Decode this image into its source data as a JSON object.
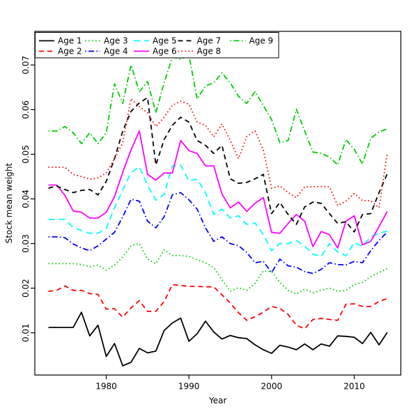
{
  "chart_data": {
    "type": "line",
    "title": "",
    "xlabel": "Year",
    "ylabel": "Stock mean weight",
    "grid": false,
    "legend_position": "top-left",
    "background": "#ffffff",
    "axis_color": "#000000",
    "xlim": [
      1971.36,
      2015.64
    ],
    "ylim": [
      0.00054,
      0.07754
    ],
    "x_ticks": [
      1980,
      1990,
      2000,
      2010
    ],
    "x_tick_labels": [
      "1980",
      "1990",
      "2000",
      "2010"
    ],
    "y_ticks": [
      0.01,
      0.02,
      0.03,
      0.04,
      0.05,
      0.06,
      0.07
    ],
    "y_tick_labels": [
      "0.01",
      "0.02",
      "0.03",
      "0.04",
      "0.05",
      "0.06",
      "0.07"
    ],
    "x": [
      1973,
      1974,
      1975,
      1976,
      1977,
      1978,
      1979,
      1980,
      1981,
      1982,
      1983,
      1984,
      1985,
      1986,
      1987,
      1988,
      1989,
      1990,
      1991,
      1992,
      1993,
      1994,
      1995,
      1996,
      1997,
      1998,
      1999,
      2000,
      2001,
      2002,
      2003,
      2004,
      2005,
      2006,
      2007,
      2008,
      2009,
      2010,
      2011,
      2012,
      2013,
      2014
    ],
    "series": [
      {
        "name": "Age 1",
        "color": "#000000",
        "linetype": "solid",
        "values": [
          0.0112,
          0.0112,
          0.0112,
          0.0112,
          0.0146,
          0.0093,
          0.0117,
          0.0047,
          0.0076,
          0.0026,
          0.0034,
          0.0065,
          0.0055,
          0.0059,
          0.0105,
          0.0122,
          0.0133,
          0.0081,
          0.0098,
          0.0126,
          0.0102,
          0.0086,
          0.0094,
          0.0089,
          0.0087,
          0.0073,
          0.0062,
          0.0054,
          0.0072,
          0.0068,
          0.0062,
          0.0075,
          0.0062,
          0.0075,
          0.007,
          0.0093,
          0.0092,
          0.009,
          0.0076,
          0.0101,
          0.0073,
          0.0101
        ]
      },
      {
        "name": "Age 2",
        "color": "#ff0000",
        "linetype": "dashed",
        "values": [
          0.0193,
          0.0195,
          0.0205,
          0.0195,
          0.0195,
          0.0188,
          0.0186,
          0.0153,
          0.0154,
          0.0135,
          0.0156,
          0.0172,
          0.0148,
          0.0148,
          0.017,
          0.0208,
          0.0206,
          0.0204,
          0.0204,
          0.0203,
          0.0203,
          0.0185,
          0.0167,
          0.0145,
          0.0128,
          0.0136,
          0.0146,
          0.0159,
          0.0155,
          0.0141,
          0.0117,
          0.0109,
          0.013,
          0.0132,
          0.013,
          0.0128,
          0.0164,
          0.0165,
          0.0159,
          0.0159,
          0.017,
          0.0177
        ]
      },
      {
        "name": "Age 3",
        "color": "#00cc00",
        "linetype": "dotted",
        "values": [
          0.0255,
          0.0255,
          0.0255,
          0.0255,
          0.0253,
          0.0248,
          0.0252,
          0.024,
          0.0252,
          0.027,
          0.0295,
          0.03,
          0.0265,
          0.0255,
          0.0286,
          0.0273,
          0.0273,
          0.0271,
          0.0264,
          0.0257,
          0.0246,
          0.0219,
          0.0193,
          0.0201,
          0.0195,
          0.0211,
          0.0239,
          0.0237,
          0.0213,
          0.0195,
          0.0187,
          0.0198,
          0.019,
          0.0195,
          0.02,
          0.0193,
          0.0195,
          0.0208,
          0.0213,
          0.0226,
          0.0235,
          0.0244
        ]
      },
      {
        "name": "Age 4",
        "color": "#0000ff",
        "linetype": "dotdash",
        "values": [
          0.0315,
          0.0315,
          0.0313,
          0.0299,
          0.029,
          0.0284,
          0.0295,
          0.031,
          0.0325,
          0.036,
          0.0399,
          0.0395,
          0.035,
          0.0335,
          0.036,
          0.0409,
          0.0414,
          0.0398,
          0.0377,
          0.0335,
          0.0305,
          0.0315,
          0.03,
          0.0295,
          0.028,
          0.0257,
          0.026,
          0.0235,
          0.0265,
          0.025,
          0.0247,
          0.0237,
          0.0233,
          0.0242,
          0.0257,
          0.0253,
          0.0252,
          0.026,
          0.0257,
          0.0284,
          0.0307,
          0.0326
        ]
      },
      {
        "name": "Age 5",
        "color": "#00ffff",
        "linetype": "longdash",
        "values": [
          0.0354,
          0.0354,
          0.0354,
          0.0336,
          0.0329,
          0.0323,
          0.0323,
          0.0334,
          0.038,
          0.042,
          0.0459,
          0.0472,
          0.043,
          0.0397,
          0.041,
          0.0474,
          0.0476,
          0.044,
          0.0445,
          0.0414,
          0.0365,
          0.0377,
          0.0357,
          0.0362,
          0.0343,
          0.0346,
          0.032,
          0.0284,
          0.03,
          0.03,
          0.0307,
          0.0294,
          0.0276,
          0.0271,
          0.03,
          0.0281,
          0.0273,
          0.0302,
          0.0294,
          0.0315,
          0.0323,
          0.0328
        ]
      },
      {
        "name": "Age 6",
        "color": "#ff00ff",
        "linetype": "solid",
        "values": [
          0.0431,
          0.0431,
          0.0408,
          0.0373,
          0.037,
          0.0357,
          0.0357,
          0.037,
          0.0405,
          0.046,
          0.051,
          0.0552,
          0.0455,
          0.0442,
          0.0458,
          0.0458,
          0.0531,
          0.0508,
          0.0502,
          0.0474,
          0.0474,
          0.0411,
          0.038,
          0.0393,
          0.0372,
          0.039,
          0.0403,
          0.0325,
          0.0323,
          0.0345,
          0.0365,
          0.035,
          0.0293,
          0.0327,
          0.032,
          0.029,
          0.035,
          0.0362,
          0.0297,
          0.0305,
          0.0338,
          0.0372
        ]
      },
      {
        "name": "Age 7",
        "color": "#000000",
        "linetype": "dashed",
        "values": [
          0.0424,
          0.0429,
          0.0421,
          0.0414,
          0.0419,
          0.0421,
          0.0409,
          0.0439,
          0.049,
          0.0552,
          0.0596,
          0.0615,
          0.0627,
          0.0476,
          0.0533,
          0.0565,
          0.0583,
          0.0572,
          0.0531,
          0.052,
          0.0502,
          0.052,
          0.0445,
          0.0435,
          0.0437,
          0.0445,
          0.0455,
          0.0367,
          0.0392,
          0.0365,
          0.0343,
          0.0382,
          0.0393,
          0.039,
          0.0367,
          0.0345,
          0.0349,
          0.0326,
          0.0365,
          0.0367,
          0.0414,
          0.0456
        ]
      },
      {
        "name": "Age 8",
        "color": "#ff0000",
        "linetype": "dotted",
        "values": [
          0.0471,
          0.0471,
          0.0471,
          0.0455,
          0.045,
          0.0444,
          0.0447,
          0.0458,
          0.049,
          0.0526,
          0.0625,
          0.0607,
          0.0593,
          0.0562,
          0.0583,
          0.061,
          0.0619,
          0.0612,
          0.0572,
          0.0565,
          0.0539,
          0.0568,
          0.0531,
          0.049,
          0.054,
          0.0552,
          0.051,
          0.0424,
          0.0429,
          0.0414,
          0.0403,
          0.0427,
          0.0427,
          0.0428,
          0.0427,
          0.0385,
          0.0395,
          0.0412,
          0.0396,
          0.0396,
          0.038,
          0.0503
        ]
      },
      {
        "name": "Age 9",
        "color": "#00cc00",
        "linetype": "dotdash",
        "values": [
          0.0552,
          0.0552,
          0.0562,
          0.0548,
          0.0524,
          0.0548,
          0.0524,
          0.0548,
          0.0658,
          0.0614,
          0.07,
          0.064,
          0.0663,
          0.0593,
          0.066,
          0.0718,
          0.0713,
          0.0722,
          0.0624,
          0.0653,
          0.066,
          0.0682,
          0.066,
          0.063,
          0.0614,
          0.064,
          0.0609,
          0.0578,
          0.0526,
          0.0531,
          0.0601,
          0.0552,
          0.0505,
          0.0502,
          0.0494,
          0.0476,
          0.0533,
          0.0511,
          0.0478,
          0.0536,
          0.055,
          0.0557
        ]
      }
    ]
  }
}
